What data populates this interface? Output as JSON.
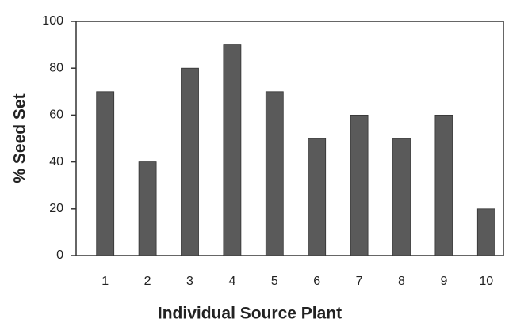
{
  "chart_data": {
    "type": "bar",
    "x_label": "Individual Source Plant",
    "y_label": "% Seed Set",
    "categories": [
      "1",
      "2",
      "3",
      "4",
      "5",
      "6",
      "7",
      "8",
      "9",
      "10"
    ],
    "values": [
      70,
      40,
      80,
      90,
      70,
      50,
      60,
      50,
      60,
      20
    ],
    "color": "#5a5a5a",
    "ylim": [
      0,
      100
    ],
    "yticks": [
      0,
      20,
      40,
      60,
      80,
      100
    ],
    "grid": false
  }
}
